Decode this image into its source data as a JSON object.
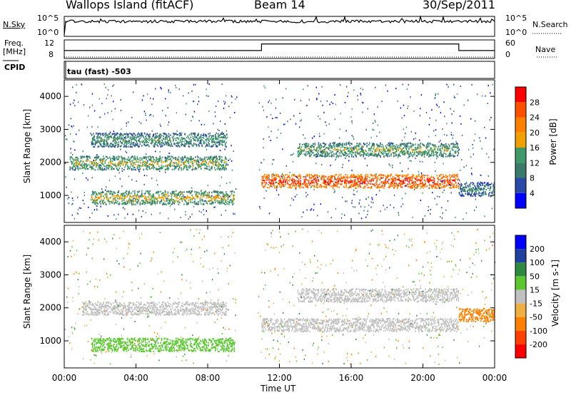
{
  "header": {
    "station": "Wallops Island (fitACF)",
    "beam": "Beam 14",
    "date": "30/Sep/2011"
  },
  "strips": {
    "nsky_label": "N.Sky",
    "nsky_ticks": [
      "10^5",
      "10^0"
    ],
    "nsearch_label": "N.Search",
    "nsearch_ticks": [
      "10^5",
      "10^0"
    ],
    "freq_label_1": "Freq.",
    "freq_label_2": "[MHz]",
    "freq_ticks": [
      "12",
      "8"
    ],
    "nave_label": "Nave",
    "nave_ticks": [
      "60",
      "0"
    ],
    "cpid_label": "CPID",
    "cpid_text": "tau (fast) -503"
  },
  "colors": {
    "power": [
      "#0000ff",
      "#2a4aa8",
      "#3a7a6a",
      "#3e9a6a",
      "#f0a000",
      "#ff8000",
      "#ff5000",
      "#ff0000"
    ],
    "velocity": [
      "#ff0000",
      "#ff4000",
      "#ff8000",
      "#f0b040",
      "#c0c0c0",
      "#5cc830",
      "#2e8a40",
      "#2040a0",
      "#0000ff"
    ]
  },
  "chart_data": [
    {
      "type": "heatmap",
      "name": "power",
      "xlabel": "",
      "ylabel": "Slant Range [km]",
      "x_ticks": [
        "00:00",
        "04:00",
        "08:00",
        "12:00",
        "16:00",
        "20:00",
        "00:00"
      ],
      "xlim": [
        0,
        24
      ],
      "ylim": [
        180,
        4500
      ],
      "y_ticks": [
        1000,
        2000,
        3000,
        4000
      ],
      "colorbar_label": "Power [dB]",
      "colorbar_ticks": [
        4,
        8,
        12,
        16,
        20,
        24,
        28
      ],
      "colorbar_range": [
        0,
        32
      ],
      "echo_bands": [
        {
          "t_start": 0.3,
          "t_end": 9.0,
          "range_km": 2000,
          "power_db": 17
        },
        {
          "t_start": 1.5,
          "t_end": 9.0,
          "range_km": 2700,
          "power_db": 14
        },
        {
          "t_start": 1.5,
          "t_end": 9.5,
          "range_km": 950,
          "power_db": 18
        },
        {
          "t_start": 11.0,
          "t_end": 22.0,
          "range_km": 1450,
          "power_db": 28
        },
        {
          "t_start": 13.0,
          "t_end": 22.0,
          "range_km": 2400,
          "power_db": 16
        },
        {
          "t_start": 22.0,
          "t_end": 24.0,
          "range_km": 1200,
          "power_db": 12
        }
      ]
    },
    {
      "type": "heatmap",
      "name": "velocity",
      "xlabel": "Time UT",
      "ylabel": "Slant Range [km]",
      "x_ticks": [
        "00:00",
        "04:00",
        "08:00",
        "12:00",
        "16:00",
        "20:00",
        "00:00"
      ],
      "xlim": [
        0,
        24
      ],
      "ylim": [
        180,
        4500
      ],
      "y_ticks": [
        1000,
        2000,
        3000,
        4000
      ],
      "colorbar_label": "Velocity [m s-1]",
      "colorbar_ticks": [
        "-200",
        "-100",
        "-50",
        "-15",
        "15",
        "50",
        "100",
        "200"
      ],
      "echo_bands": [
        {
          "t_start": 1.0,
          "t_end": 9.0,
          "range_km": 2000,
          "velocity": 0
        },
        {
          "t_start": 1.5,
          "t_end": 9.5,
          "range_km": 900,
          "velocity": 40
        },
        {
          "t_start": 11.0,
          "t_end": 22.0,
          "range_km": 1500,
          "velocity": 0
        },
        {
          "t_start": 13.0,
          "t_end": 22.0,
          "range_km": 2400,
          "velocity": 0
        },
        {
          "t_start": 22.0,
          "t_end": 24.0,
          "range_km": 1800,
          "velocity": -60
        }
      ]
    },
    {
      "type": "line",
      "name": "frequency",
      "series": [
        {
          "name": "Freq.",
          "x": [
            0,
            11,
            11,
            22,
            22,
            24
          ],
          "y": [
            9,
            9,
            11.5,
            11.5,
            9,
            9
          ]
        }
      ],
      "ylim": [
        6,
        13
      ]
    }
  ]
}
